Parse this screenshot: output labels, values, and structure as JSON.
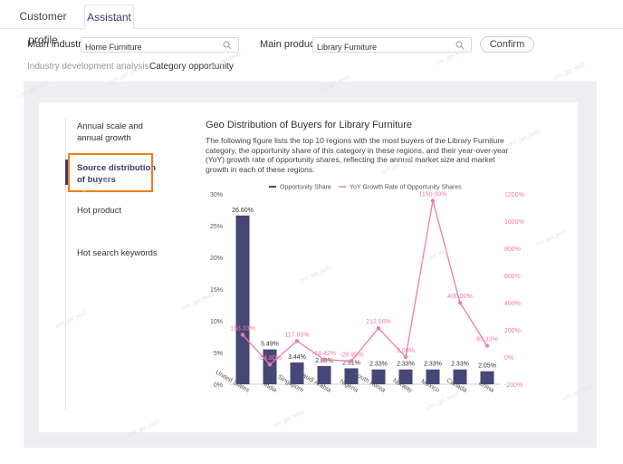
{
  "tabs": [
    {
      "label": "Customer profile"
    },
    {
      "label": "Assistant"
    }
  ],
  "filters": {
    "industry_label": "Main industry",
    "industry_value": "Home Furniture",
    "product_label": "Main product",
    "product_value": "Library Furniture",
    "confirm_label": "Confirm"
  },
  "subtabs": [
    {
      "label": "Industry development analysis"
    },
    {
      "label": "Category opportunity"
    }
  ],
  "sidebar": {
    "items": [
      {
        "label": "Annual scale and annual growth"
      },
      {
        "label": "Source distribution of buyers"
      },
      {
        "label": "Hot product"
      },
      {
        "label": "Hot search keywords"
      }
    ]
  },
  "chart_section": {
    "title": "Geo Distribution of Buyers for Library Furniture",
    "description": "The following figure lists the top 10 regions with the most buyers of the Library Furniture category, the opportunity share of this category in these regions, and their year-over-year (YoY) growth rate of opportunity shares, reflecting the annual market size and market growth in each of these regions."
  },
  "watermark_text": "crm_gpt_test1",
  "colors": {
    "bar": "#474678",
    "line": "#f07ca3",
    "accent_border": "#f07d16",
    "active_text": "#3b3a6b"
  },
  "chart_data": {
    "type": "bar",
    "categories": [
      "United States",
      "India",
      "Singapore",
      "Saudi Arabia",
      "Nigeria",
      "South Korea",
      "Norway",
      "Mexico",
      "Canada",
      "China"
    ],
    "series": [
      {
        "name": "Opportunity Share",
        "type": "bar",
        "axis": "left",
        "values": [
          26.6,
          5.49,
          3.44,
          2.88,
          2.51,
          2.33,
          2.33,
          2.33,
          2.33,
          2.05
        ],
        "labels": [
          "26.60%",
          "5.49%",
          "3.44%",
          "2.88%",
          "2.51%",
          "2.33%",
          "2.33%",
          "2.33%",
          "2.33%",
          "2.05%"
        ]
      },
      {
        "name": "YoY Growth Rate of Opportunity Shares",
        "type": "line",
        "axis": "right",
        "values": [
          163.33,
          -54.8,
          117.65,
          -18.42,
          -28.95,
          212.5,
          0.0,
          1150.0,
          400.0,
          83.33
        ],
        "labels": [
          "163.33%",
          "-54.80%",
          "117.65%",
          "-18.42%",
          "-28.95%",
          "212.50%",
          "0.00%",
          "1150.00%",
          "400.00%",
          "83.33%"
        ]
      }
    ],
    "y_left": {
      "range": [
        0,
        30
      ],
      "ticks": [
        "0%",
        "5%",
        "10%",
        "15%",
        "20%",
        "25%",
        "30%"
      ]
    },
    "y_right": {
      "range": [
        -200,
        1200
      ],
      "ticks": [
        "-200%",
        "0%",
        "200%",
        "400%",
        "600%",
        "800%",
        "1000%",
        "1200%"
      ]
    },
    "legend_position": "top",
    "grid": false
  }
}
